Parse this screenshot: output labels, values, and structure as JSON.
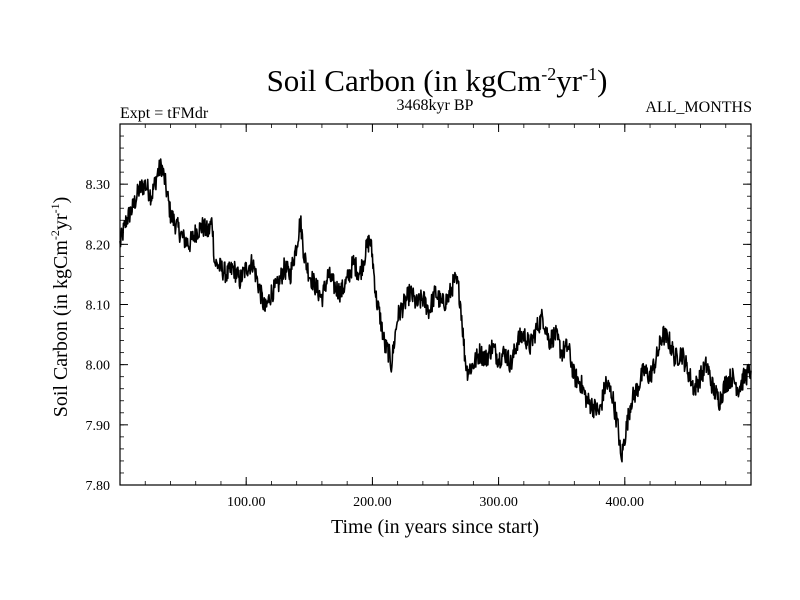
{
  "chart_data": {
    "type": "line",
    "title": "Soil Carbon (in kgCm",
    "title_sup1": "-2",
    "title_mid": "yr",
    "title_sup2": "-1",
    "title_end": ")",
    "subtitle_left": "Expt = tFMdr",
    "subtitle_center": "3468kyr BP",
    "subtitle_right": "ALL_MONTHS",
    "xlabel": "Time (in years since start)",
    "ylabel_main": "Soil Carbon (in kgCm",
    "ylabel_sup1": "-2",
    "ylabel_mid": "yr",
    "ylabel_sup2": "-1",
    "ylabel_end": ")",
    "xlim": [
      0,
      500
    ],
    "ylim": [
      7.8,
      8.4
    ],
    "xticks": [
      100,
      200,
      300,
      400
    ],
    "xtick_labels": [
      "100.00",
      "200.00",
      "300.00",
      "400.00"
    ],
    "yticks": [
      7.8,
      7.9,
      8.0,
      8.1,
      8.2,
      8.3
    ],
    "ytick_labels": [
      "7.80",
      "7.90",
      "8.00",
      "8.10",
      "8.20",
      "8.30"
    ],
    "line_color": "#000000",
    "series": [
      {
        "x": [
          0,
          5,
          10,
          15,
          20,
          25,
          30,
          33,
          36,
          40,
          45,
          50,
          55,
          60,
          65,
          70,
          73,
          75,
          80,
          85,
          90,
          95,
          100,
          105,
          110,
          115,
          120,
          125,
          130,
          135,
          140,
          143,
          146,
          150,
          155,
          160,
          165,
          170,
          175,
          180,
          185,
          190,
          195,
          198,
          200,
          203,
          206,
          210,
          213,
          215,
          220,
          225,
          230,
          235,
          240,
          245,
          250,
          255,
          260,
          265,
          268,
          270,
          273,
          275,
          280,
          285,
          290,
          295,
          300,
          305,
          310,
          315,
          320,
          325,
          330,
          335,
          340,
          345,
          350,
          355,
          360,
          365,
          370,
          375,
          380,
          385,
          390,
          395,
          397,
          400,
          405,
          410,
          415,
          420,
          425,
          430,
          435,
          440,
          445,
          450,
          455,
          460,
          465,
          470,
          475,
          480,
          485,
          490,
          495,
          500
        ],
        "y": [
          8.2,
          8.24,
          8.26,
          8.29,
          8.3,
          8.28,
          8.32,
          8.33,
          8.3,
          8.25,
          8.23,
          8.21,
          8.2,
          8.22,
          8.23,
          8.22,
          8.24,
          8.17,
          8.16,
          8.15,
          8.16,
          8.14,
          8.16,
          8.17,
          8.13,
          8.09,
          8.12,
          8.13,
          8.16,
          8.15,
          8.2,
          8.24,
          8.18,
          8.15,
          8.13,
          8.11,
          8.15,
          8.13,
          8.12,
          8.14,
          8.17,
          8.15,
          8.19,
          8.21,
          8.18,
          8.11,
          8.08,
          8.03,
          8.02,
          8.0,
          8.08,
          8.1,
          8.12,
          8.1,
          8.11,
          8.09,
          8.12,
          8.1,
          8.11,
          8.14,
          8.13,
          8.1,
          8.02,
          7.99,
          8.0,
          8.02,
          8.01,
          8.03,
          8.01,
          8.02,
          8.0,
          8.04,
          8.05,
          8.03,
          8.06,
          8.08,
          8.04,
          8.05,
          8.02,
          8.03,
          7.98,
          7.97,
          7.94,
          7.93,
          7.92,
          7.97,
          7.95,
          7.89,
          7.84,
          7.88,
          7.94,
          7.96,
          7.99,
          7.98,
          8.01,
          8.05,
          8.04,
          8.01,
          8.02,
          7.99,
          7.96,
          7.98,
          8.0,
          7.96,
          7.94,
          7.97,
          7.98,
          7.96,
          7.98,
          7.99
        ]
      }
    ]
  }
}
